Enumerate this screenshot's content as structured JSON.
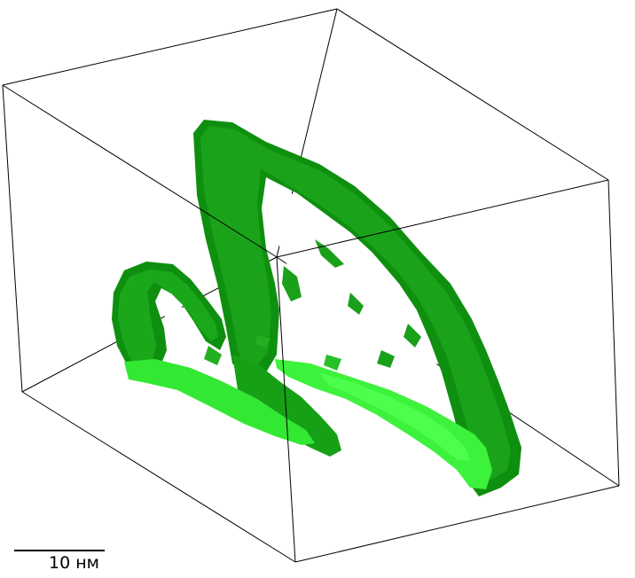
{
  "scale_bar": {
    "label": "10 нм"
  },
  "colors": {
    "background": "#ffffff",
    "box_edge": "#000000",
    "surface_dark": "#119911",
    "surface_mid": "#18b018",
    "surface_light": "#33ee33",
    "surface_bright": "#44ff44"
  }
}
